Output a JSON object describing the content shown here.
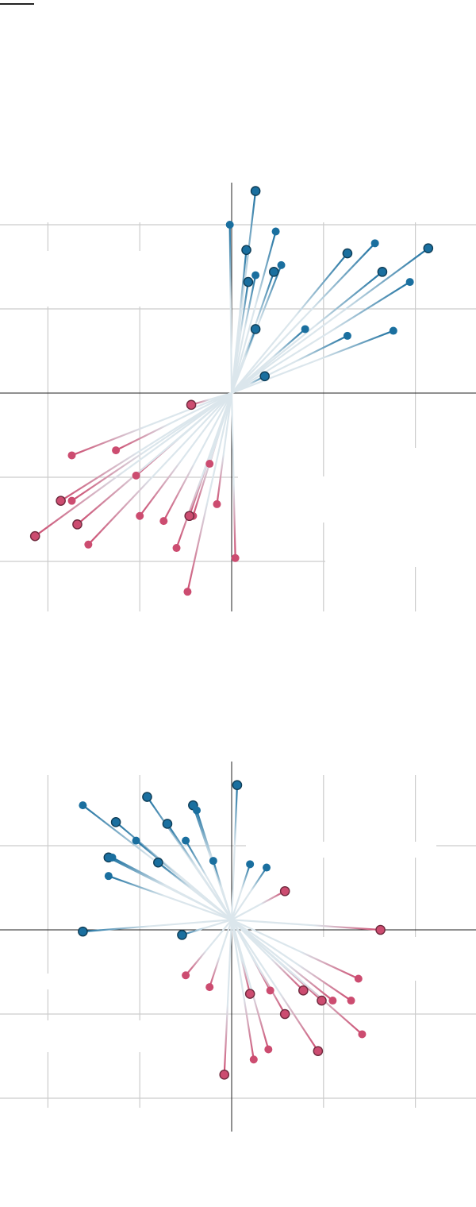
{
  "colors": {
    "positive": "#1a6f9f",
    "negative": "#cc4c70",
    "center": "#dbe6ec",
    "grid": "#cccccc",
    "axis": "#222222"
  },
  "chart_data": [
    {
      "type": "scatter",
      "grid": true,
      "xlim": [
        -1.25,
        1.35
      ],
      "ylim": [
        -1.28,
        1.25
      ],
      "xticks": [
        -1,
        -0.5,
        0,
        0.5,
        1
      ],
      "yticks": [
        -1,
        -0.5,
        0,
        0.5,
        1
      ],
      "origin": [
        0,
        0
      ],
      "series": [
        {
          "color_key": "positive",
          "points": [
            {
              "x": 0.13,
              "y": 1.2,
              "outlined": true
            },
            {
              "x": -0.01,
              "y": 1.0
            },
            {
              "x": 0.24,
              "y": 0.96
            },
            {
              "x": 0.08,
              "y": 0.85,
              "outlined": true
            },
            {
              "x": 0.63,
              "y": 0.83,
              "outlined": true
            },
            {
              "x": 0.78,
              "y": 0.89
            },
            {
              "x": 1.07,
              "y": 0.86,
              "outlined": true
            },
            {
              "x": 0.82,
              "y": 0.72,
              "outlined": true
            },
            {
              "x": 0.97,
              "y": 0.66
            },
            {
              "x": 0.23,
              "y": 0.72,
              "outlined": true
            },
            {
              "x": 0.27,
              "y": 0.76
            },
            {
              "x": 0.13,
              "y": 0.7
            },
            {
              "x": 0.09,
              "y": 0.66,
              "outlined": true
            },
            {
              "x": 0.13,
              "y": 0.38,
              "outlined": true
            },
            {
              "x": 0.4,
              "y": 0.38
            },
            {
              "x": 0.63,
              "y": 0.34
            },
            {
              "x": 0.88,
              "y": 0.37
            },
            {
              "x": 0.18,
              "y": 0.1,
              "outlined": true
            }
          ]
        },
        {
          "color_key": "negative",
          "points": [
            {
              "x": -0.22,
              "y": -0.07,
              "outlined": true
            },
            {
              "x": -0.63,
              "y": -0.34
            },
            {
              "x": -0.87,
              "y": -0.37
            },
            {
              "x": -0.52,
              "y": -0.49
            },
            {
              "x": -0.12,
              "y": -0.42
            },
            {
              "x": -0.93,
              "y": -0.64,
              "outlined": true
            },
            {
              "x": -0.87,
              "y": -0.64
            },
            {
              "x": -0.08,
              "y": -0.66
            },
            {
              "x": -0.5,
              "y": -0.73
            },
            {
              "x": -0.84,
              "y": -0.78,
              "outlined": true
            },
            {
              "x": -0.37,
              "y": -0.76
            },
            {
              "x": -0.21,
              "y": -0.73
            },
            {
              "x": -0.23,
              "y": -0.73,
              "outlined": true
            },
            {
              "x": -1.07,
              "y": -0.85,
              "outlined": true
            },
            {
              "x": -0.78,
              "y": -0.9
            },
            {
              "x": -0.3,
              "y": -0.92
            },
            {
              "x": 0.02,
              "y": -0.98
            },
            {
              "x": -0.24,
              "y": -1.18
            }
          ]
        }
      ]
    },
    {
      "type": "scatter",
      "grid": true,
      "xlim": [
        -1.25,
        1.35
      ],
      "ylim": [
        -1.18,
        1.0
      ],
      "xticks": [
        -1,
        -0.5,
        0,
        0.5,
        1
      ],
      "yticks": [
        -1,
        -0.5,
        0,
        0.5,
        1
      ],
      "origin": [
        0,
        0.06
      ],
      "series": [
        {
          "color_key": "positive",
          "points": [
            {
              "x": 0.03,
              "y": 0.86,
              "outlined": true
            },
            {
              "x": -0.46,
              "y": 0.79,
              "outlined": true
            },
            {
              "x": -0.81,
              "y": 0.74
            },
            {
              "x": -0.21,
              "y": 0.74,
              "outlined": true
            },
            {
              "x": -0.19,
              "y": 0.71
            },
            {
              "x": -0.63,
              "y": 0.64,
              "outlined": true
            },
            {
              "x": -0.35,
              "y": 0.63,
              "outlined": true
            },
            {
              "x": -0.52,
              "y": 0.53
            },
            {
              "x": -0.25,
              "y": 0.53
            },
            {
              "x": -0.67,
              "y": 0.43,
              "outlined": true
            },
            {
              "x": -0.65,
              "y": 0.43
            },
            {
              "x": -0.4,
              "y": 0.4,
              "outlined": true
            },
            {
              "x": -0.1,
              "y": 0.41
            },
            {
              "x": 0.1,
              "y": 0.39
            },
            {
              "x": 0.19,
              "y": 0.37
            },
            {
              "x": -0.67,
              "y": 0.32
            },
            {
              "x": -0.81,
              "y": -0.01,
              "outlined": true
            },
            {
              "x": -0.27,
              "y": -0.03,
              "outlined": true
            }
          ]
        },
        {
          "color_key": "negative",
          "points": [
            {
              "x": 0.29,
              "y": 0.23,
              "outlined": true
            },
            {
              "x": 0.81,
              "y": 0.0,
              "outlined": true
            },
            {
              "x": -0.25,
              "y": -0.27
            },
            {
              "x": 0.69,
              "y": -0.29
            },
            {
              "x": -0.12,
              "y": -0.34
            },
            {
              "x": 0.21,
              "y": -0.36
            },
            {
              "x": 0.39,
              "y": -0.36,
              "outlined": true
            },
            {
              "x": 0.1,
              "y": -0.38,
              "outlined": true
            },
            {
              "x": 0.49,
              "y": -0.42,
              "outlined": true
            },
            {
              "x": 0.55,
              "y": -0.42
            },
            {
              "x": 0.65,
              "y": -0.42
            },
            {
              "x": 0.29,
              "y": -0.5,
              "outlined": true
            },
            {
              "x": 0.71,
              "y": -0.62
            },
            {
              "x": 0.2,
              "y": -0.71
            },
            {
              "x": 0.47,
              "y": -0.72,
              "outlined": true
            },
            {
              "x": 0.12,
              "y": -0.77
            },
            {
              "x": -0.04,
              "y": -0.86,
              "outlined": true
            }
          ]
        }
      ]
    }
  ]
}
